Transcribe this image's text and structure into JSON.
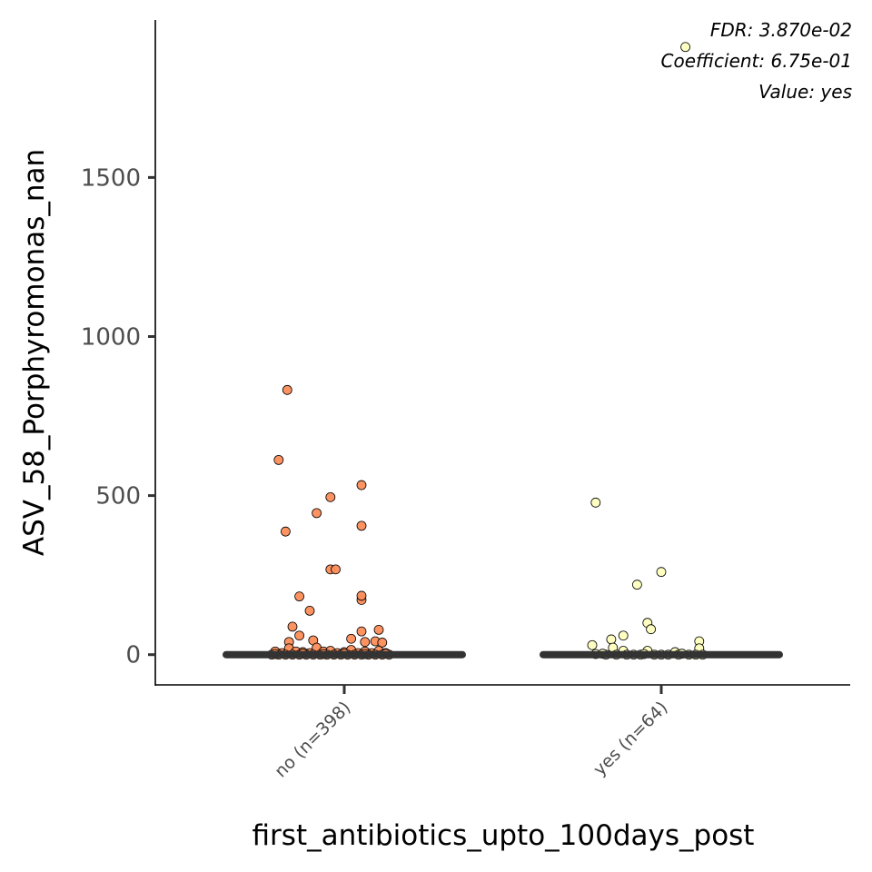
{
  "chart_data": {
    "type": "scatter",
    "title": "",
    "xlabel": "first_antibiotics_upto_100days_post",
    "ylabel": "ASV_58_Porphyromonas_nan",
    "categories": [
      "no (n=398)",
      "yes (n=64)"
    ],
    "y_ticks": [
      0,
      500,
      1000,
      1500
    ],
    "y_tick_labels": [
      "0",
      "500",
      "1000",
      "1500"
    ],
    "ylim": [
      -95,
      1995
    ],
    "grid": false,
    "annotations": [
      "FDR: 3.870e-02",
      "Coefficient: 6.75e-01",
      "Value: yes"
    ],
    "colors": {
      "no": "#fc8d59",
      "yes": "#ffffbf",
      "point_stroke": "#000000",
      "median_bar": "#333333",
      "axis": "#000000"
    },
    "medians": [
      0,
      0
    ],
    "series": [
      {
        "category": "no (n=398)",
        "color": "#fc8d59",
        "points": [
          [
            -0.19,
            612
          ],
          [
            -0.165,
            832
          ],
          [
            -0.17,
            387
          ],
          [
            -0.08,
            445
          ],
          [
            -0.04,
            495
          ],
          [
            -0.04,
            268
          ],
          [
            -0.025,
            268
          ],
          [
            0.05,
            405
          ],
          [
            0.05,
            533
          ],
          [
            -0.13,
            183
          ],
          [
            -0.1,
            138
          ],
          [
            0.05,
            172
          ],
          [
            0.05,
            73
          ],
          [
            0.1,
            78
          ],
          [
            -0.15,
            88
          ],
          [
            -0.13,
            60
          ],
          [
            0.05,
            185
          ],
          [
            -0.09,
            45
          ],
          [
            0.02,
            50
          ],
          [
            0.06,
            40
          ],
          [
            0.09,
            42
          ],
          [
            0.11,
            38
          ],
          [
            -0.16,
            40
          ],
          [
            -0.2,
            10
          ],
          [
            -0.18,
            5
          ],
          [
            -0.16,
            20
          ],
          [
            -0.14,
            10
          ],
          [
            -0.12,
            8
          ],
          [
            -0.1,
            5
          ],
          [
            -0.08,
            22
          ],
          [
            -0.06,
            10
          ],
          [
            -0.04,
            12
          ],
          [
            -0.02,
            5
          ],
          [
            0.0,
            8
          ],
          [
            0.02,
            15
          ],
          [
            0.04,
            5
          ],
          [
            0.06,
            10
          ],
          [
            0.08,
            5
          ],
          [
            0.1,
            12
          ],
          [
            0.12,
            5
          ],
          [
            -0.21,
            0
          ],
          [
            -0.19,
            0
          ],
          [
            -0.17,
            0
          ],
          [
            -0.15,
            0
          ],
          [
            -0.13,
            0
          ],
          [
            -0.11,
            0
          ],
          [
            -0.09,
            0
          ],
          [
            -0.07,
            0
          ],
          [
            -0.05,
            0
          ],
          [
            -0.03,
            0
          ],
          [
            -0.01,
            0
          ],
          [
            0.01,
            0
          ],
          [
            0.03,
            0
          ],
          [
            0.05,
            0
          ],
          [
            0.07,
            0
          ],
          [
            0.09,
            0
          ],
          [
            0.11,
            0
          ],
          [
            0.13,
            0
          ],
          [
            -0.2,
            2
          ],
          [
            -0.12,
            3
          ],
          [
            -0.06,
            2
          ],
          [
            0.0,
            3
          ],
          [
            0.06,
            2
          ],
          [
            0.12,
            3
          ]
        ]
      },
      {
        "category": "yes (n=64)",
        "color": "#ffffbf",
        "points": [
          [
            0.07,
            1910
          ],
          [
            -0.19,
            478
          ],
          [
            0.0,
            260
          ],
          [
            -0.07,
            220
          ],
          [
            -0.04,
            100
          ],
          [
            -0.03,
            80
          ],
          [
            -0.11,
            60
          ],
          [
            -0.145,
            48
          ],
          [
            -0.2,
            30
          ],
          [
            -0.14,
            22
          ],
          [
            0.11,
            42
          ],
          [
            0.11,
            20
          ],
          [
            -0.11,
            12
          ],
          [
            -0.04,
            12
          ],
          [
            0.04,
            8
          ],
          [
            -0.19,
            2
          ],
          [
            -0.16,
            0
          ],
          [
            -0.13,
            0
          ],
          [
            -0.1,
            0
          ],
          [
            -0.08,
            0
          ],
          [
            -0.06,
            0
          ],
          [
            -0.02,
            0
          ],
          [
            0.0,
            0
          ],
          [
            0.02,
            0
          ],
          [
            0.05,
            0
          ],
          [
            0.08,
            0
          ],
          [
            0.1,
            0
          ],
          [
            0.12,
            0
          ],
          [
            -0.17,
            3
          ],
          [
            -0.05,
            2
          ],
          [
            0.06,
            3
          ]
        ]
      }
    ]
  }
}
